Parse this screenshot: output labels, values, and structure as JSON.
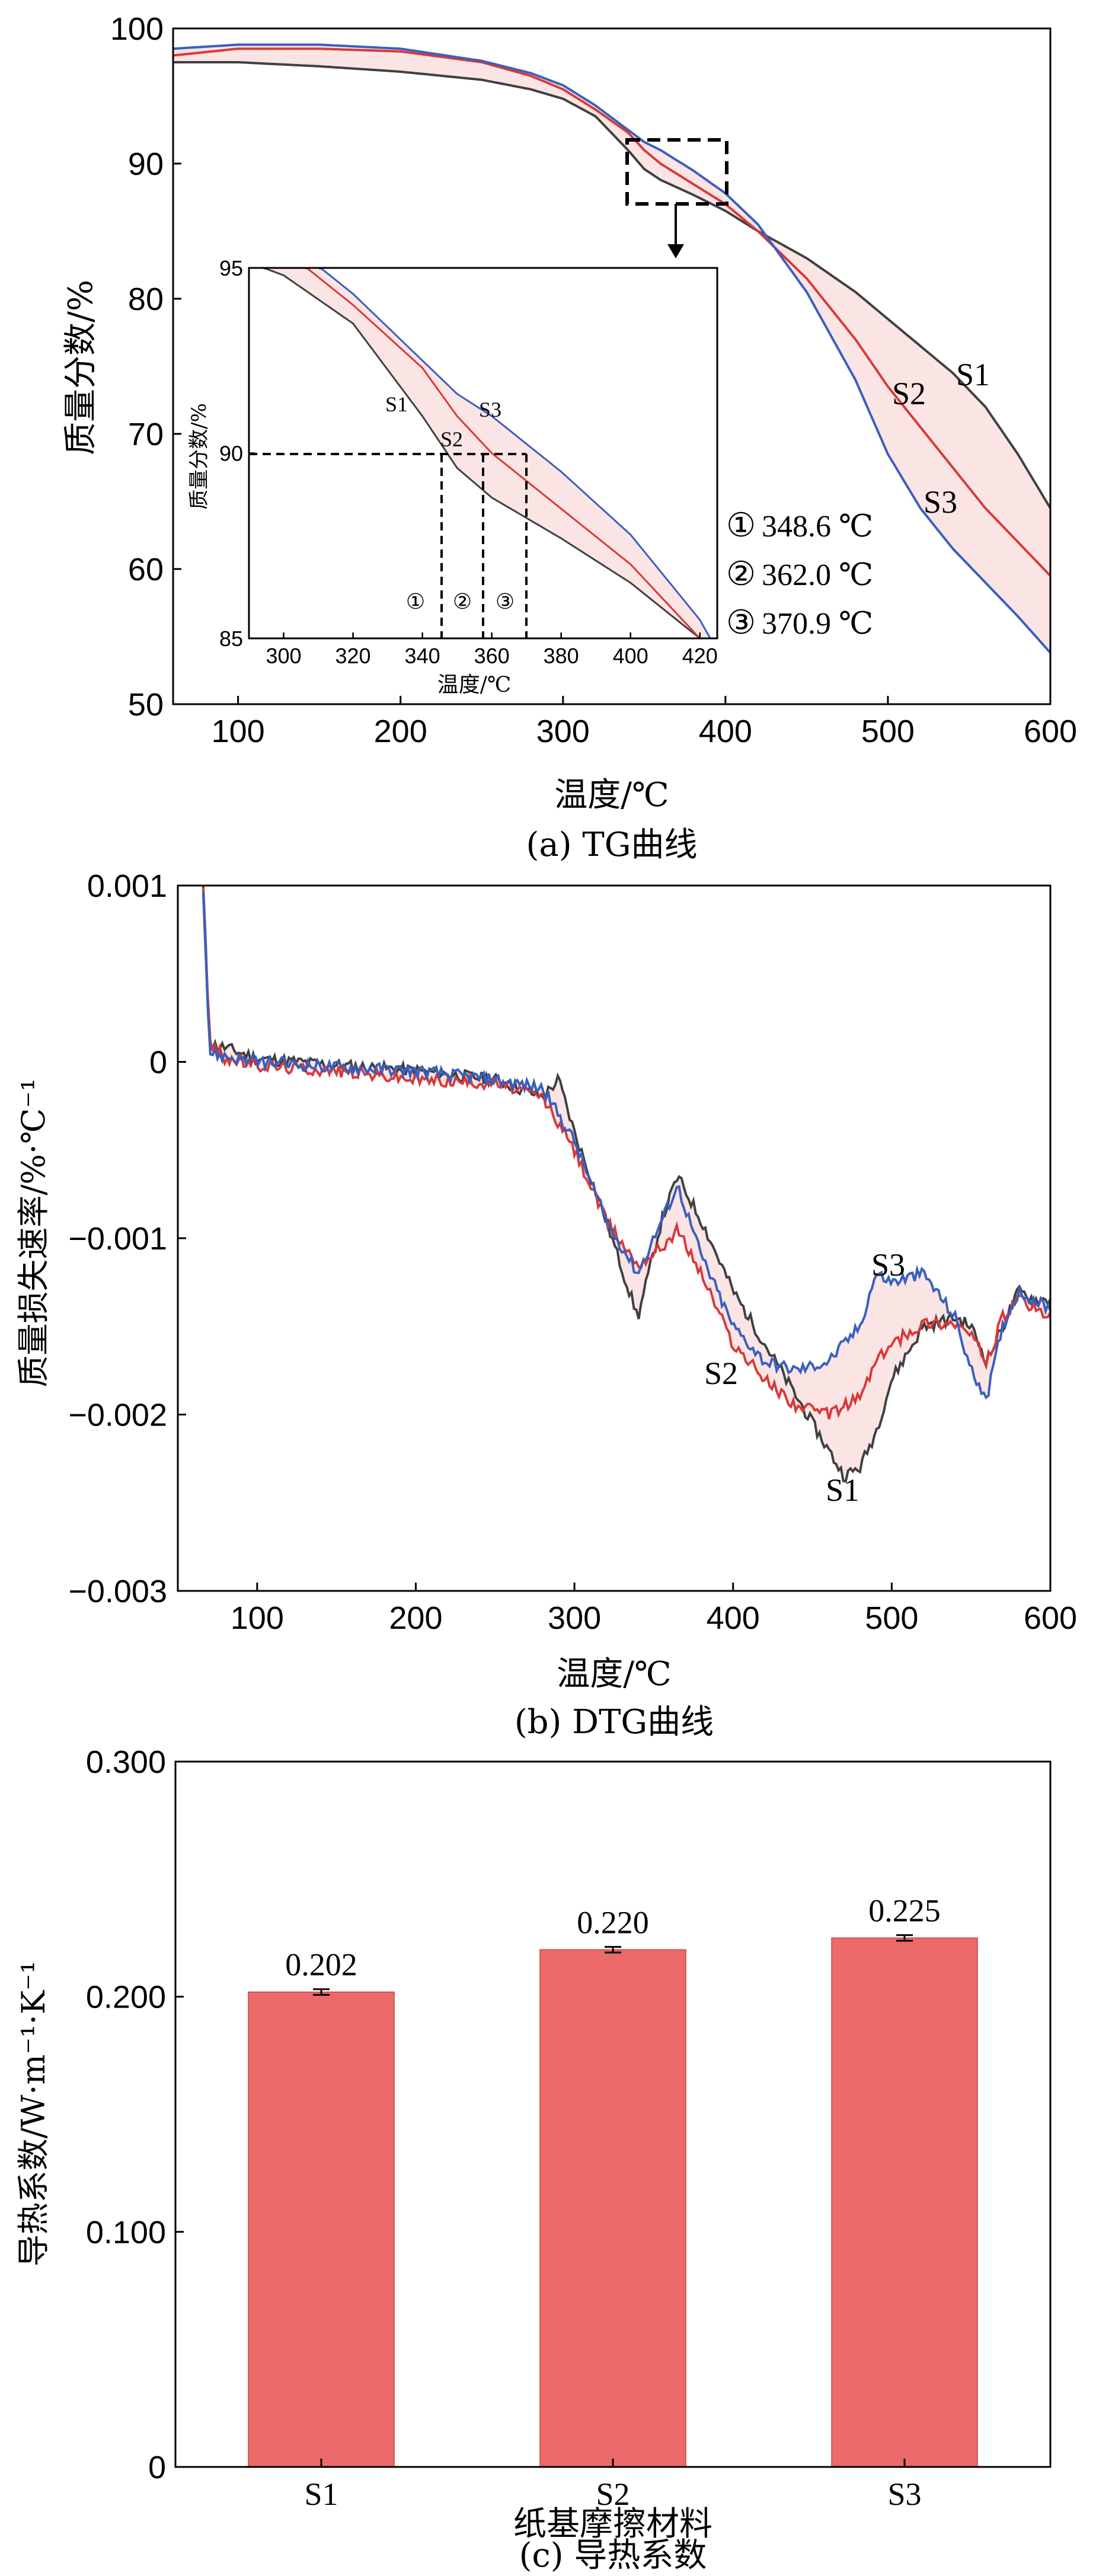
{
  "panels": {
    "tg": {
      "caption": "(a) TG曲线",
      "xlabel": "温度/℃",
      "ylabel": "质量分数/%",
      "xlim": [
        60,
        600
      ],
      "ylim": [
        50,
        100
      ],
      "xticks": [
        "100",
        "200",
        "300",
        "400",
        "500",
        "600"
      ],
      "yticks": [
        "50",
        "60",
        "70",
        "80",
        "90",
        "100"
      ],
      "curve_labels": [
        "S1",
        "S2",
        "S3"
      ],
      "annotations": [
        {
          "mark": "①",
          "text": "348.6 ℃"
        },
        {
          "mark": "②",
          "text": "362.0 ℃"
        },
        {
          "mark": "③",
          "text": "370.9 ℃"
        }
      ],
      "inset": {
        "ylabel": "质量分数/%",
        "xlabel": "温度/℃",
        "xticks": [
          "300",
          "320",
          "340",
          "360",
          "380",
          "400",
          "420"
        ],
        "yticks": [
          "85",
          "90",
          "95"
        ],
        "xlim": [
          290,
          425
        ],
        "ylim": [
          85,
          95
        ],
        "curve_labels": [
          "S1",
          "S2",
          "S3"
        ],
        "marks": [
          "①",
          "②",
          "③"
        ]
      }
    },
    "dtg": {
      "caption": "(b) DTG曲线",
      "xlabel": "温度/℃",
      "ylabel": "质量损失速率/%·℃⁻¹",
      "xlim": [
        50,
        600
      ],
      "ylim": [
        -0.003,
        0.001
      ],
      "xticks": [
        "100",
        "200",
        "300",
        "400",
        "500",
        "600"
      ],
      "yticks": [
        "−0.003",
        "−0.002",
        "−0.001",
        "0",
        "0.001"
      ],
      "curve_labels": [
        "S3",
        "S2",
        "S1"
      ]
    },
    "bar": {
      "caption": "(c) 导热系数",
      "xlabel": "纸基摩擦材料",
      "ylabel": "导热系数/W·m⁻¹·K⁻¹",
      "yticks": [
        "0",
        "0.100",
        "0.200",
        "0.300"
      ],
      "value_labels": [
        "0.202",
        "0.220",
        "0.225"
      ]
    }
  },
  "colors": {
    "S1": "#404040",
    "S2": "#d83a3a",
    "S3": "#3a5fbf",
    "bar": "#ec6a6a",
    "band": "#fbe4e4"
  },
  "chart_data": [
    {
      "type": "line",
      "title": "",
      "xlabel": "温度/℃",
      "ylabel": "质量分数/%",
      "xlim": [
        60,
        600
      ],
      "ylim": [
        50,
        100
      ],
      "series": [
        {
          "name": "S1",
          "x": [
            60,
            100,
            150,
            200,
            250,
            280,
            300,
            320,
            340,
            350,
            360,
            380,
            400,
            420,
            450,
            480,
            500,
            520,
            540,
            560,
            580,
            600
          ],
          "y": [
            97.5,
            97.5,
            97.2,
            96.8,
            96.2,
            95.5,
            94.8,
            93.5,
            91.0,
            89.6,
            88.8,
            87.7,
            86.5,
            85.0,
            83.0,
            80.5,
            78.5,
            76.5,
            74.5,
            72.0,
            68.5,
            64.5
          ]
        },
        {
          "name": "S2",
          "x": [
            60,
            100,
            150,
            200,
            250,
            280,
            300,
            320,
            340,
            350,
            360,
            380,
            400,
            420,
            450,
            480,
            500,
            520,
            540,
            560,
            580,
            600
          ],
          "y": [
            98.0,
            98.5,
            98.5,
            98.3,
            97.5,
            96.5,
            95.5,
            94.0,
            92.3,
            91.0,
            90.0,
            88.5,
            87.0,
            85.0,
            81.5,
            77.0,
            73.5,
            70.5,
            67.5,
            64.5,
            62.0,
            59.5
          ]
        },
        {
          "name": "S3",
          "x": [
            60,
            100,
            150,
            200,
            250,
            280,
            300,
            320,
            340,
            350,
            360,
            380,
            400,
            420,
            450,
            480,
            500,
            520,
            540,
            560,
            580,
            600
          ],
          "y": [
            98.5,
            98.8,
            98.8,
            98.5,
            97.6,
            96.7,
            95.8,
            94.3,
            92.5,
            91.6,
            91.0,
            89.5,
            87.8,
            85.5,
            80.5,
            74.0,
            68.5,
            64.5,
            61.5,
            59.0,
            56.5,
            53.8
          ]
        }
      ],
      "annotations": [
        "①348.6 ℃",
        "②362.0 ℃",
        "③370.9 ℃"
      ]
    },
    {
      "type": "line",
      "title": "",
      "xlabel": "温度/℃",
      "ylabel": "质量损失速率/%·℃⁻¹",
      "xlim": [
        50,
        600
      ],
      "ylim": [
        -0.003,
        0.001
      ],
      "series": [
        {
          "name": "S1",
          "x": [
            66,
            70,
            80,
            100,
            150,
            200,
            250,
            280,
            290,
            300,
            320,
            340,
            355,
            365,
            380,
            400,
            420,
            440,
            460,
            470,
            480,
            490,
            500,
            520,
            540,
            550,
            560,
            570,
            580,
            590,
            600
          ],
          "y": [
            0.001,
            0.0001,
            8e-05,
            2e-05,
            -2e-05,
            -5e-05,
            -0.0001,
            -0.0002,
            -0.0001,
            -0.0004,
            -0.0009,
            -0.00145,
            -0.0009,
            -0.00065,
            -0.0009,
            -0.0013,
            -0.0016,
            -0.0019,
            -0.0022,
            -0.00235,
            -0.0023,
            -0.0021,
            -0.0018,
            -0.0015,
            -0.00145,
            -0.0015,
            -0.0017,
            -0.0015,
            -0.0013,
            -0.00135,
            -0.00135
          ]
        },
        {
          "name": "S2",
          "x": [
            66,
            70,
            80,
            100,
            150,
            200,
            250,
            280,
            300,
            320,
            340,
            355,
            365,
            380,
            400,
            420,
            440,
            460,
            470,
            480,
            490,
            500,
            520,
            540,
            550,
            560,
            570,
            580,
            590,
            600
          ],
          "y": [
            0.001,
            0.0001,
            2e-05,
            -2e-05,
            -5e-05,
            -0.0001,
            -0.00012,
            -0.0002,
            -0.0005,
            -0.0009,
            -0.00115,
            -0.00105,
            -0.00095,
            -0.0012,
            -0.0016,
            -0.0018,
            -0.00195,
            -0.002,
            -0.00195,
            -0.0019,
            -0.0017,
            -0.0016,
            -0.00148,
            -0.00148,
            -0.00155,
            -0.0017,
            -0.00145,
            -0.00135,
            -0.0014,
            -0.00145
          ]
        },
        {
          "name": "S3",
          "x": [
            66,
            70,
            80,
            100,
            150,
            200,
            250,
            280,
            300,
            320,
            340,
            355,
            365,
            380,
            400,
            420,
            440,
            460,
            470,
            480,
            490,
            500,
            520,
            540,
            550,
            560,
            570,
            580,
            590,
            600
          ],
          "y": [
            0.001,
            5e-05,
            3e-05,
            0.0,
            -3e-05,
            -5e-05,
            -0.0001,
            -0.00015,
            -0.00045,
            -0.0009,
            -0.0012,
            -0.0009,
            -0.0007,
            -0.0011,
            -0.0015,
            -0.0017,
            -0.00175,
            -0.0017,
            -0.0016,
            -0.0015,
            -0.0012,
            -0.00125,
            -0.0012,
            -0.00145,
            -0.00175,
            -0.0019,
            -0.0015,
            -0.0013,
            -0.00135,
            -0.0014
          ]
        }
      ]
    },
    {
      "type": "bar",
      "title": "",
      "xlabel": "纸基摩擦材料",
      "ylabel": "导热系数/W·m⁻¹·K⁻¹",
      "categories": [
        "S1",
        "S2",
        "S3"
      ],
      "values": [
        0.202,
        0.22,
        0.225
      ],
      "ylim": [
        0,
        0.3
      ]
    }
  ]
}
